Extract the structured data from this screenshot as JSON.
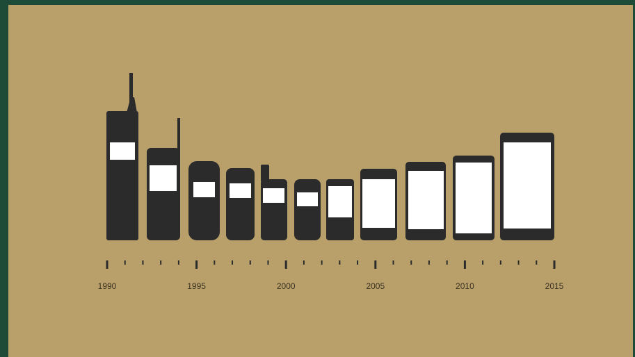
{
  "timeline": {
    "labels": [
      "1990",
      "1995",
      "2000",
      "2005",
      "2010",
      "2015"
    ]
  }
}
